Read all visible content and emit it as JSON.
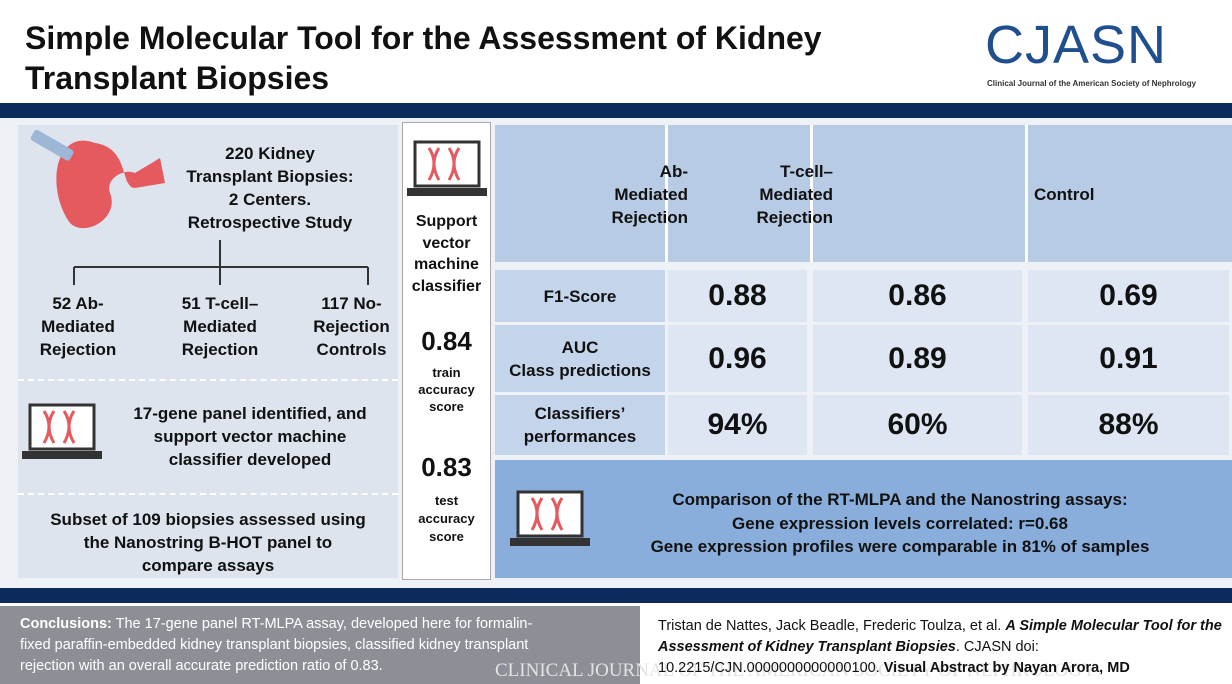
{
  "header": {
    "title_lines": [
      "Simple Molecular Tool for the Assessment of Kidney",
      "Transplant Biopsies"
    ],
    "logo": "CJASN",
    "logo_subtitle": "Clinical Journal of the American Society of Nephrology"
  },
  "study": {
    "lines": [
      "220 Kidney",
      "Transplant Biopsies:",
      "2 Centers.",
      "Retrospective Study"
    ],
    "groups": [
      [
        "52 Ab-",
        "Mediated",
        "Rejection"
      ],
      [
        "51 T-cell–",
        "Mediated",
        "Rejection"
      ],
      [
        "117 No-",
        "Rejection",
        "Controls"
      ]
    ],
    "panel_lines": [
      "17-gene panel identified, and",
      "support vector machine",
      "classifier developed"
    ],
    "subset_lines": [
      "Subset of 109 biopsies assessed using",
      "the Nanostring B-HOT panel to",
      "compare assays"
    ]
  },
  "classifier": {
    "lines": [
      "Support",
      "vector",
      "machine",
      "classifier"
    ],
    "train_value": "0.84",
    "train_lines": [
      "train",
      "accuracy",
      "score"
    ],
    "test_value": "0.83",
    "test_lines": [
      "test",
      "accuracy",
      "score"
    ]
  },
  "table": {
    "columns": [
      [
        "Ab-",
        "Mediated",
        "Rejection"
      ],
      [
        "T-cell–",
        "Mediated",
        "Rejection"
      ],
      [
        "Control"
      ]
    ],
    "rows": [
      {
        "label_lines": [
          "F1-Score"
        ],
        "values": [
          "0.88",
          "0.86",
          "0.69"
        ]
      },
      {
        "label_lines": [
          "AUC",
          "Class predictions"
        ],
        "values": [
          "0.96",
          "0.89",
          "0.91"
        ]
      },
      {
        "label_lines": [
          "Classifiers’",
          "performances"
        ],
        "values": [
          "94%",
          "60%",
          "88%"
        ]
      }
    ]
  },
  "comparison": {
    "lines": [
      "Comparison of the RT-MLPA and the Nanostring assays:",
      "Gene expression levels correlated: r=0.68",
      "Gene expression profiles were comparable in 81% of samples"
    ]
  },
  "footer": {
    "conclusions_label": "Conclusions:",
    "conclusions_lines": [
      " The 17-gene panel RT-MLPA assay, developed here for formalin-",
      "fixed paraffin-embedded kidney transplant biopsies, classified kidney transplant",
      "rejection with an overall accurate prediction ratio of 0.83."
    ],
    "citation_authors": "Tristan de Nattes, Jack Beadle, Frederic Toulza, et al. ",
    "citation_title": "A Simple Molecular Tool for the Assessment of Kidney Transplant Biopsies",
    "citation_rest": ". CJASN doi: 10.2215/CJN.0000000000000100. ",
    "credit": "Visual Abstract by Nayan Arora, MD",
    "watermark": "CLINICAL JOURNAL OF THE AMERICAN SOCIETY OF NEPHROLOGY"
  }
}
